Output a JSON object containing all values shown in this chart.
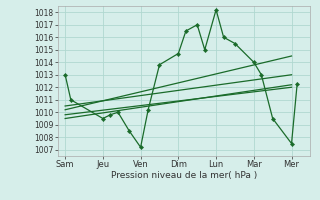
{
  "xlabel": "Pression niveau de la mer( hPa )",
  "xlabels": [
    "Sam",
    "Jeu",
    "Ven",
    "Dim",
    "Lun",
    "Mar",
    "Mer"
  ],
  "ylim": [
    1006.5,
    1018.5
  ],
  "yticks": [
    1007,
    1008,
    1009,
    1010,
    1011,
    1012,
    1013,
    1014,
    1015,
    1016,
    1017,
    1018
  ],
  "bg_color": "#d6eeea",
  "grid_color": "#b0d8d0",
  "line_color": "#1a6b2a",
  "xtick_pos": [
    0,
    1,
    2,
    3,
    4,
    5,
    6
  ],
  "line1_x": [
    0,
    0.15,
    1,
    1.2,
    1.4,
    1.7,
    2,
    2.2,
    2.5,
    3,
    3.2,
    3.5,
    3.7,
    4,
    4.2,
    4.5,
    5,
    5.2,
    5.5,
    6,
    6.15
  ],
  "line1_y": [
    1013,
    1011,
    1009.5,
    1009.8,
    1010,
    1008.5,
    1007.2,
    1010.2,
    1013.8,
    1014.7,
    1016.5,
    1017,
    1015,
    1018.2,
    1016,
    1015.5,
    1014,
    1013,
    1009.5,
    1007.5,
    1012.3
  ],
  "line2_x": [
    0,
    6
  ],
  "line2_y": [
    1009.5,
    1012.2
  ],
  "line3_x": [
    0,
    6
  ],
  "line3_y": [
    1009.8,
    1012.0
  ],
  "line4_x": [
    0,
    6
  ],
  "line4_y": [
    1010.2,
    1014.5
  ],
  "line5_x": [
    0,
    6
  ],
  "line5_y": [
    1010.5,
    1013.0
  ]
}
